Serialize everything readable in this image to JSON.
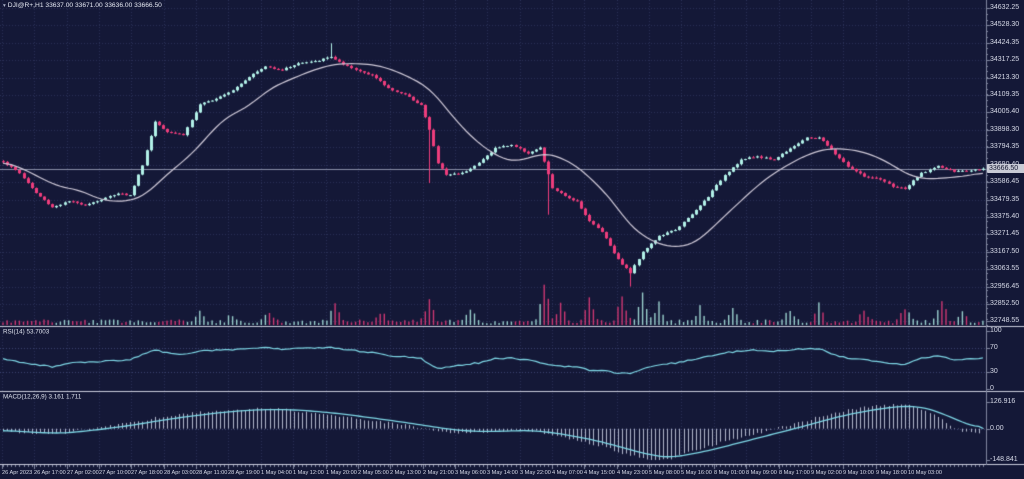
{
  "title": {
    "text": "DJI@R+,H1  33637.00 33671.00 33636.00 33666.50"
  },
  "main_panel": {
    "current_price_label": "33666.50"
  },
  "rsi_panel": {
    "label": "RSI(14) 53.7003"
  },
  "macd_panel": {
    "label": "MACD(12,26,9) 3.161 1.711"
  },
  "colors": {
    "background": "#141837",
    "grid": "#2b3057",
    "level_line": "#3a4270",
    "bull": "#b2f1e8",
    "bear": "#ee3d7c",
    "ma_line": "#cfc9d8",
    "rsi_line": "#7ed7e6",
    "macd_line": "#7ed7e6",
    "histogram": "#c3c9dd",
    "separator": "#caccdb",
    "axis_line": "#80869f",
    "price_line": "#8a8fa8",
    "text": "#d7dae8",
    "tag_bg": "#c9cbd6",
    "tag_text": "#12152e"
  },
  "chart_data": {
    "type": "candlestick",
    "symbol": "DJI@R+",
    "timeframe": "H1",
    "ohlc_display": {
      "open": "33637.00",
      "high": "33671.00",
      "low": "33636.00",
      "close": "33666.50"
    },
    "bars": 240,
    "seed": 1337,
    "last_price": 33666.5,
    "close_noise": 9,
    "ma_period": 20,
    "close_anchors": [
      [
        0,
        33710
      ],
      [
        4,
        33640
      ],
      [
        8,
        33520
      ],
      [
        12,
        33435
      ],
      [
        16,
        33470
      ],
      [
        20,
        33450
      ],
      [
        24,
        33480
      ],
      [
        28,
        33520
      ],
      [
        31,
        33505
      ],
      [
        34,
        33690
      ],
      [
        37,
        33950
      ],
      [
        40,
        33890
      ],
      [
        44,
        33870
      ],
      [
        48,
        34050
      ],
      [
        52,
        34090
      ],
      [
        56,
        34140
      ],
      [
        60,
        34220
      ],
      [
        64,
        34280
      ],
      [
        68,
        34260
      ],
      [
        72,
        34300
      ],
      [
        76,
        34310
      ],
      [
        80,
        34340
      ],
      [
        83,
        34290
      ],
      [
        86,
        34260
      ],
      [
        90,
        34230
      ],
      [
        94,
        34150
      ],
      [
        98,
        34110
      ],
      [
        102,
        34050
      ],
      [
        104,
        33900
      ],
      [
        106,
        33700
      ],
      [
        108,
        33630
      ],
      [
        112,
        33640
      ],
      [
        116,
        33700
      ],
      [
        120,
        33790
      ],
      [
        124,
        33810
      ],
      [
        128,
        33760
      ],
      [
        131,
        33790
      ],
      [
        134,
        33550
      ],
      [
        137,
        33500
      ],
      [
        140,
        33470
      ],
      [
        143,
        33350
      ],
      [
        146,
        33290
      ],
      [
        150,
        33120
      ],
      [
        153,
        33040
      ],
      [
        156,
        33170
      ],
      [
        160,
        33260
      ],
      [
        164,
        33300
      ],
      [
        168,
        33390
      ],
      [
        172,
        33500
      ],
      [
        176,
        33630
      ],
      [
        180,
        33720
      ],
      [
        184,
        33740
      ],
      [
        188,
        33720
      ],
      [
        192,
        33790
      ],
      [
        196,
        33850
      ],
      [
        199,
        33855
      ],
      [
        202,
        33780
      ],
      [
        206,
        33680
      ],
      [
        210,
        33620
      ],
      [
        214,
        33600
      ],
      [
        217,
        33560
      ],
      [
        220,
        33545
      ],
      [
        224,
        33640
      ],
      [
        228,
        33680
      ],
      [
        232,
        33650
      ],
      [
        236,
        33655
      ],
      [
        239,
        33666.5
      ]
    ],
    "wick_overrides": [
      {
        "bar": 80,
        "high": 34420
      },
      {
        "bar": 104,
        "low": 33580
      },
      {
        "bar": 133,
        "low": 33390
      },
      {
        "bar": 153,
        "low": 32958
      }
    ],
    "volume_spikes": [
      [
        48,
        12
      ],
      [
        56,
        10
      ],
      [
        65,
        12
      ],
      [
        81,
        25
      ],
      [
        92,
        12
      ],
      [
        104,
        28
      ],
      [
        114,
        15
      ],
      [
        132,
        45
      ],
      [
        136,
        20
      ],
      [
        143,
        25
      ],
      [
        151,
        30
      ],
      [
        156,
        35
      ],
      [
        160,
        20
      ],
      [
        170,
        15
      ],
      [
        178,
        18
      ],
      [
        192,
        15
      ],
      [
        199,
        20
      ],
      [
        210,
        12
      ],
      [
        220,
        18
      ],
      [
        229,
        25
      ],
      [
        234,
        12
      ]
    ],
    "price_axis": {
      "max_price": 34680.4,
      "min_price": 32721.0,
      "labels": [
        "34632.25",
        "34528.30",
        "34424.35",
        "34317.25",
        "34213.30",
        "34109.35",
        "34005.40",
        "33898.30",
        "33794.35",
        "33690.40",
        "33586.45",
        "33479.35",
        "33375.40",
        "33271.45",
        "33167.50",
        "33063.55",
        "32956.45",
        "32852.50",
        "32748.55"
      ]
    },
    "rsi": {
      "period": 14,
      "value": 53.7003,
      "levels": [
        70,
        30
      ],
      "anchors": [
        [
          0,
          52
        ],
        [
          8,
          42
        ],
        [
          12,
          38
        ],
        [
          16,
          45
        ],
        [
          24,
          48
        ],
        [
          31,
          50
        ],
        [
          37,
          68
        ],
        [
          40,
          62
        ],
        [
          44,
          60
        ],
        [
          48,
          66
        ],
        [
          56,
          68
        ],
        [
          60,
          70
        ],
        [
          64,
          72
        ],
        [
          68,
          68
        ],
        [
          72,
          70
        ],
        [
          76,
          70
        ],
        [
          80,
          71
        ],
        [
          86,
          66
        ],
        [
          90,
          63
        ],
        [
          94,
          58
        ],
        [
          98,
          56
        ],
        [
          102,
          52
        ],
        [
          106,
          35
        ],
        [
          110,
          40
        ],
        [
          116,
          45
        ],
        [
          120,
          52
        ],
        [
          124,
          53
        ],
        [
          128,
          50
        ],
        [
          134,
          40
        ],
        [
          140,
          38
        ],
        [
          143,
          33
        ],
        [
          146,
          32
        ],
        [
          150,
          27
        ],
        [
          153,
          26
        ],
        [
          156,
          35
        ],
        [
          160,
          42
        ],
        [
          164,
          45
        ],
        [
          168,
          50
        ],
        [
          172,
          56
        ],
        [
          176,
          62
        ],
        [
          180,
          66
        ],
        [
          184,
          67
        ],
        [
          188,
          65
        ],
        [
          192,
          67
        ],
        [
          196,
          70
        ],
        [
          199,
          70
        ],
        [
          202,
          60
        ],
        [
          206,
          54
        ],
        [
          210,
          50
        ],
        [
          214,
          48
        ],
        [
          217,
          44
        ],
        [
          220,
          43
        ],
        [
          224,
          54
        ],
        [
          228,
          57
        ],
        [
          232,
          50
        ],
        [
          236,
          52
        ],
        [
          239,
          53.7
        ]
      ]
    },
    "rsi_axis": {
      "labels": [
        "100",
        "70",
        "30",
        "0"
      ],
      "values": [
        100,
        70,
        30,
        0
      ]
    },
    "macd": {
      "fast": 12,
      "slow": 26,
      "signal": 9,
      "macd_value": 3.161,
      "signal_value": 1.711,
      "range": [
        -148.841,
        126.916
      ],
      "signal_anchors": [
        [
          0,
          -8
        ],
        [
          8,
          -18
        ],
        [
          14,
          -22
        ],
        [
          20,
          -12
        ],
        [
          26,
          2
        ],
        [
          32,
          18
        ],
        [
          38,
          38
        ],
        [
          44,
          55
        ],
        [
          50,
          70
        ],
        [
          56,
          82
        ],
        [
          62,
          90
        ],
        [
          68,
          92
        ],
        [
          74,
          86
        ],
        [
          80,
          76
        ],
        [
          86,
          62
        ],
        [
          92,
          46
        ],
        [
          98,
          30
        ],
        [
          104,
          12
        ],
        [
          110,
          -6
        ],
        [
          116,
          -14
        ],
        [
          122,
          -12
        ],
        [
          128,
          -8
        ],
        [
          134,
          -18
        ],
        [
          140,
          -38
        ],
        [
          146,
          -62
        ],
        [
          152,
          -95
        ],
        [
          158,
          -125
        ],
        [
          162,
          -138
        ],
        [
          166,
          -128
        ],
        [
          172,
          -105
        ],
        [
          178,
          -75
        ],
        [
          184,
          -45
        ],
        [
          190,
          -15
        ],
        [
          196,
          15
        ],
        [
          202,
          48
        ],
        [
          208,
          75
        ],
        [
          214,
          95
        ],
        [
          218,
          105
        ],
        [
          222,
          108
        ],
        [
          226,
          95
        ],
        [
          230,
          65
        ],
        [
          234,
          30
        ],
        [
          237,
          10
        ],
        [
          239,
          1.711
        ]
      ]
    },
    "macd_axis": {
      "labels": [
        "126.916",
        "0.00",
        "-148.841"
      ],
      "values": [
        126.916,
        0,
        -148.841
      ]
    },
    "time_labels": [
      "26 Apr 2023",
      "26 Apr 17:00",
      "27 Apr 02:00",
      "27 Apr 10:00",
      "27 Apr 18:00",
      "28 Apr 03:00",
      "28 Apr 11:00",
      "28 Apr 19:00",
      "1 May 04:00",
      "1 May 12:00",
      "1 May 20:00",
      "2 May 05:00",
      "2 May 13:00",
      "2 May 21:00",
      "3 May 06:00",
      "3 May 14:00",
      "3 May 22:00",
      "4 May 07:00",
      "4 May 15:00",
      "4 May 23:00",
      "5 May 08:00",
      "5 May 16:00",
      "8 May 01:00",
      "8 May 09:00",
      "8 May 17:00",
      "9 May 02:00",
      "9 May 10:00",
      "9 May 18:00",
      "10 May 03:00"
    ]
  }
}
